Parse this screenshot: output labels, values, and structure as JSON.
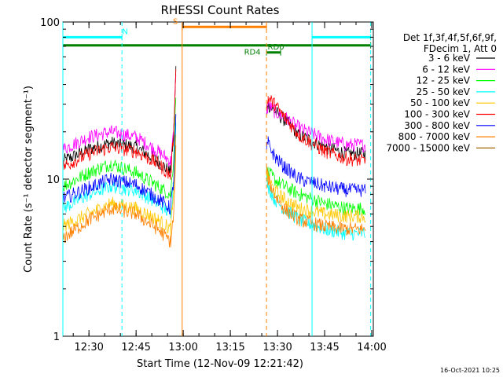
{
  "chart_data": {
    "type": "line",
    "title": "RHESSI Count Rates",
    "xlabel": "Start Time (12-Nov-09 12:21:42)",
    "ylabel": "Count Rate (s⁻¹ detector segment⁻¹)",
    "yscale": "log",
    "ylim": [
      1,
      100
    ],
    "xlim": [
      "12:21:42",
      "14:00:30"
    ],
    "x_ticks": [
      "12:30",
      "12:45",
      "13:00",
      "13:15",
      "13:30",
      "13:45",
      "14:00"
    ],
    "y_ticks": [
      "1",
      "10",
      "100"
    ],
    "legend": {
      "header": [
        "Det 1f,3f,4f,5f,6f,9f,",
        "FDecim 1, Att 0"
      ],
      "placement": "right"
    },
    "gap": [
      "12:57:40",
      "13:26:30"
    ],
    "series": [
      {
        "name": "3 - 6 keV",
        "color": "#000000",
        "x": [
          "12:21:42",
          "12:30",
          "12:37",
          "12:45",
          "12:52",
          "12:56",
          "12:57",
          "12:57:40",
          "13:26:30",
          "13:27",
          "13:29",
          "13:32",
          "13:37",
          "13:45",
          "13:52",
          "13:58"
        ],
        "y": [
          13,
          15.5,
          17,
          16,
          13,
          11,
          20,
          50,
          25,
          30,
          27,
          24,
          19,
          16,
          14.5,
          14.5
        ]
      },
      {
        "name": "6 - 12 keV",
        "color": "#ff00ff",
        "x": [
          "12:21:42",
          "12:30",
          "12:37",
          "12:45",
          "12:52",
          "12:56",
          "12:57",
          "12:57:40",
          "13:26:30",
          "13:27",
          "13:29",
          "13:32",
          "13:37",
          "13:45",
          "13:52",
          "13:58"
        ],
        "y": [
          15.5,
          18.5,
          20,
          18.5,
          15,
          13,
          20,
          50,
          25,
          30,
          27,
          25,
          21,
          18,
          16.5,
          16.5
        ]
      },
      {
        "name": "12 - 25 keV",
        "color": "#00ff00",
        "x": [
          "12:21:42",
          "12:30",
          "12:37",
          "12:45",
          "12:52",
          "12:56",
          "12:57",
          "12:57:40",
          "13:26:30",
          "13:27",
          "13:29",
          "13:32",
          "13:37",
          "13:45",
          "13:52",
          "13:58"
        ],
        "y": [
          9,
          11,
          12.5,
          11,
          9,
          8,
          14,
          35,
          11,
          11,
          10,
          9,
          8,
          7,
          6.5,
          6.5
        ]
      },
      {
        "name": "25 - 50 keV",
        "color": "#00ffff",
        "x": [
          "12:21:42",
          "12:30",
          "12:37",
          "12:45",
          "12:52",
          "12:56",
          "12:57",
          "12:57:40",
          "13:26:30",
          "13:27",
          "13:29",
          "13:32",
          "13:37",
          "13:45",
          "13:52",
          "13:58"
        ],
        "y": [
          6.5,
          8,
          9,
          8.5,
          7,
          6,
          10,
          25,
          10,
          9,
          7.5,
          6.5,
          5.5,
          4.8,
          4.5,
          4.5
        ]
      },
      {
        "name": "50 - 100 keV",
        "color": "#ffc800",
        "x": [
          "12:21:42",
          "12:30",
          "12:37",
          "12:45",
          "12:52",
          "12:56",
          "12:57",
          "12:57:40",
          "13:26:30",
          "13:27",
          "13:29",
          "13:32",
          "13:37",
          "13:45",
          "13:52",
          "13:58"
        ],
        "y": [
          5,
          6,
          7,
          6.5,
          5.5,
          4.8,
          8,
          20,
          11,
          10,
          8.5,
          7.5,
          6.5,
          6,
          5.8,
          5.8
        ]
      },
      {
        "name": "100 - 300 keV",
        "color": "#ff0000",
        "x": [
          "12:21:42",
          "12:30",
          "12:37",
          "12:45",
          "12:52",
          "12:56",
          "12:57",
          "12:57:40",
          "13:26:30",
          "13:27",
          "13:29",
          "13:32",
          "13:37",
          "13:45",
          "13:52",
          "13:58"
        ],
        "y": [
          12,
          14.5,
          16,
          15,
          12.5,
          10.5,
          20,
          55,
          27,
          33,
          30,
          25,
          19,
          15,
          13.5,
          13
        ]
      },
      {
        "name": "300 - 800 keV",
        "color": "#0000ff",
        "x": [
          "12:21:42",
          "12:30",
          "12:37",
          "12:45",
          "12:52",
          "12:56",
          "12:57",
          "12:57:40",
          "13:26:30",
          "13:27",
          "13:29",
          "13:32",
          "13:37",
          "13:45",
          "13:52",
          "13:58"
        ],
        "y": [
          7.5,
          8.8,
          10,
          9.2,
          7.5,
          6.5,
          10,
          25,
          15,
          17,
          14,
          12,
          10,
          9,
          8.5,
          8.5
        ]
      },
      {
        "name": "800 - 7000 keV",
        "color": "#ff8000",
        "x": [
          "12:21:42",
          "12:30",
          "12:37",
          "12:45",
          "12:52",
          "12:56",
          "12:57",
          "12:57:40",
          "13:26:30",
          "13:27",
          "13:29",
          "13:32",
          "13:37",
          "13:45",
          "13:52",
          "13:58"
        ],
        "y": [
          4.2,
          5.5,
          6.5,
          6,
          4.8,
          4,
          6,
          15,
          12,
          10,
          8,
          6.5,
          5.5,
          5,
          4.8,
          4.8
        ]
      },
      {
        "name": "7000 - 15000 keV",
        "color": "#a06400",
        "x": [],
        "y": []
      }
    ],
    "annotations": [
      {
        "label": "N",
        "color": "#00ffff",
        "style": "bar",
        "start": "12:21:42",
        "end": "12:40:30",
        "level": 80,
        "label_at": "12:41:30"
      },
      {
        "label": "",
        "color": "#00ffff",
        "style": "bar",
        "start": "13:41:00",
        "end": "13:59:40",
        "level": 80
      },
      {
        "label": "S",
        "color": "#ff8000",
        "style": "bar",
        "start": "12:59:40",
        "end": "13:26:30",
        "level": 93,
        "label_at": "12:57:30"
      },
      {
        "label": "RD4",
        "color": "#008000",
        "style": "bar",
        "start": "12:21:42",
        "end": "13:59:40",
        "level": 71,
        "label_at": "13:22:00"
      },
      {
        "label": "RD0",
        "color": "#008000",
        "style": "bar",
        "start": "13:26:30",
        "end": "13:31:00",
        "level": 64,
        "label_at": "13:29:30"
      },
      {
        "label": "",
        "color": "#00ffff",
        "style": "vline",
        "at": "12:21:42"
      },
      {
        "label": "",
        "color": "#00ffff",
        "style": "vdash",
        "at": "12:40:30"
      },
      {
        "label": "",
        "color": "#ff8000",
        "style": "vline",
        "at": "12:59:40"
      },
      {
        "label": "",
        "color": "#ff8000",
        "style": "vdash",
        "at": "13:26:30"
      },
      {
        "label": "",
        "color": "#00ffff",
        "style": "vline",
        "at": "13:41:00"
      },
      {
        "label": "",
        "color": "#00ffff",
        "style": "vdash",
        "at": "13:59:40"
      }
    ],
    "footer_stamp": "16-Oct-2021 10:25"
  }
}
